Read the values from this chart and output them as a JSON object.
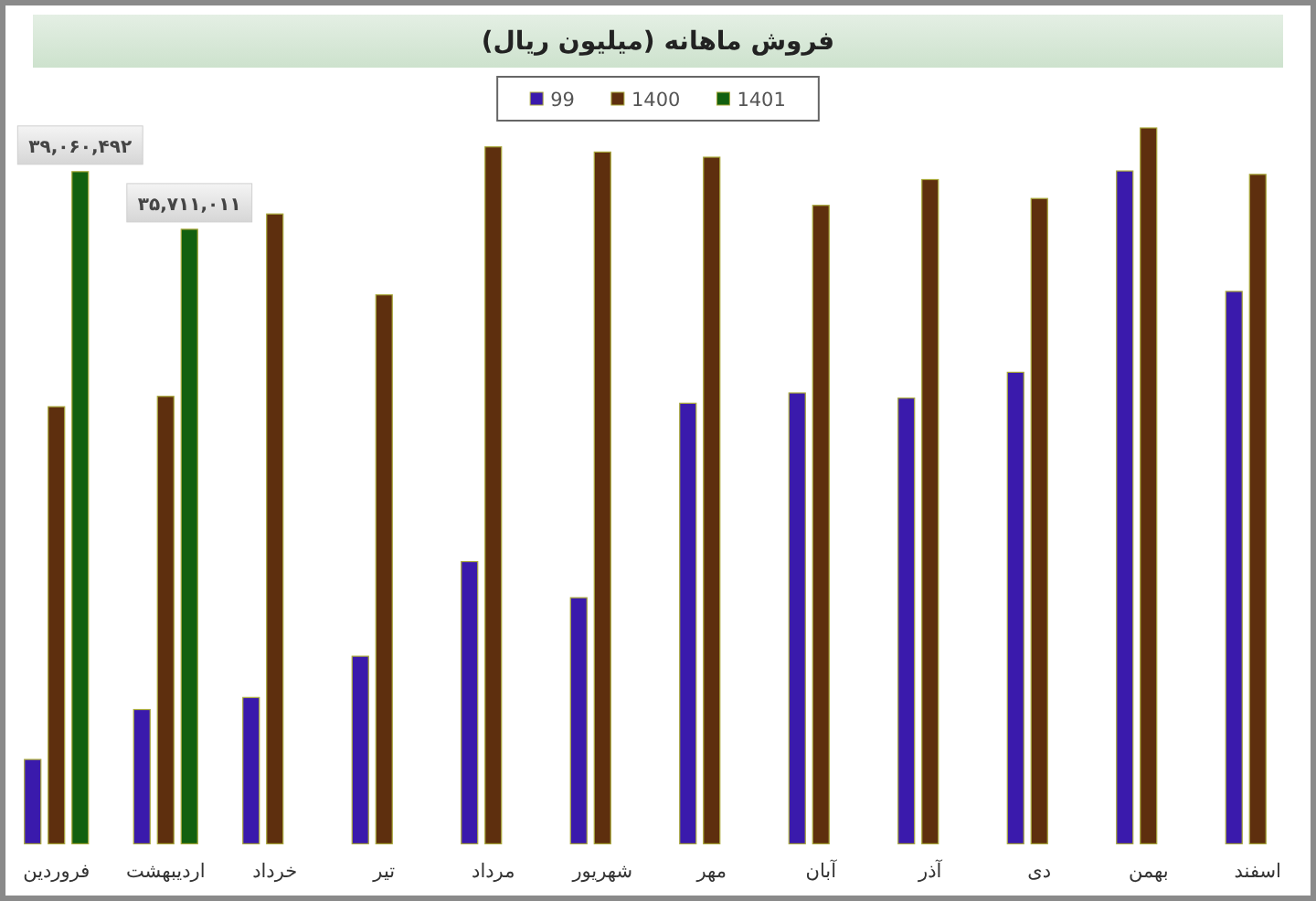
{
  "chart_data": {
    "type": "bar",
    "title": "فروش ماهانه (میلیون ریال)",
    "categories": [
      "فروردین",
      "اردیبهشت",
      "خرداد",
      "تیر",
      "مرداد",
      "شهریور",
      "مهر",
      "آبان",
      "آذر",
      "دی",
      "بهمن",
      "اسفند"
    ],
    "series": [
      {
        "name": "99",
        "color": "#3a1aac",
        "values": [
          4900000,
          7800000,
          8500000,
          10900000,
          16400000,
          14300000,
          25600000,
          26200000,
          25900000,
          27400000,
          39100000,
          32100000
        ]
      },
      {
        "name": "1400",
        "color": "#5e2f0e",
        "values": [
          25400000,
          26000000,
          36600000,
          31900000,
          40500000,
          40200000,
          39900000,
          37100000,
          38600000,
          37500000,
          41600000,
          38900000
        ]
      },
      {
        "name": "1401",
        "color": "#12600f",
        "values": [
          39060492,
          35711011,
          null,
          null,
          null,
          null,
          null,
          null,
          null,
          null,
          null,
          null
        ],
        "value_labels": [
          "۳۹,۰۶۰,۴۹۲",
          "۳۵,۷۱۱,۰۱۱",
          null,
          null,
          null,
          null,
          null,
          null,
          null,
          null,
          null,
          null
        ]
      }
    ],
    "legend": "top"
  }
}
